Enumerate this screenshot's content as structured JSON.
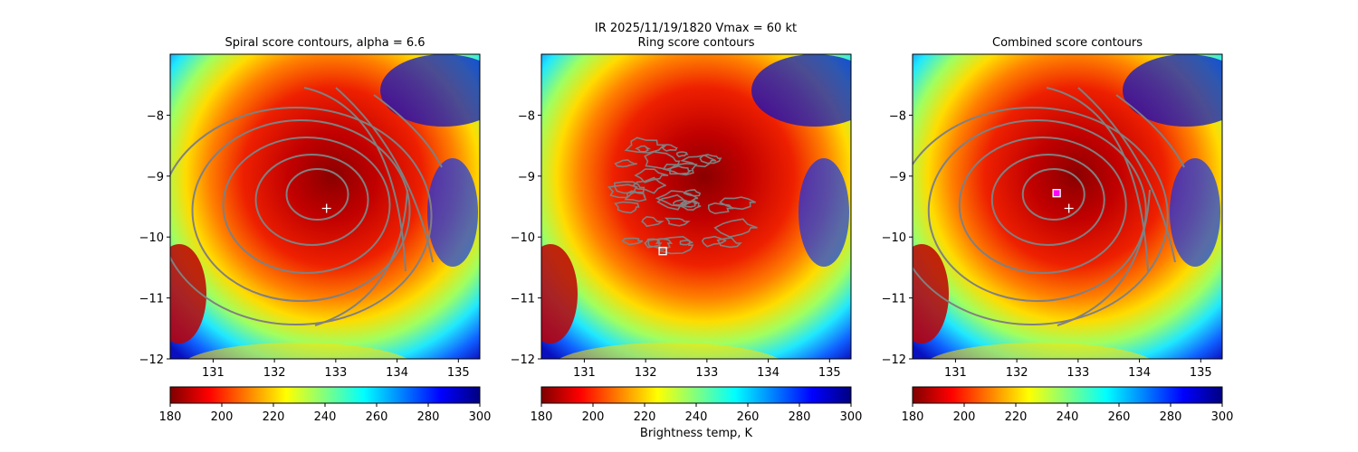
{
  "figure": {
    "suptitle_line1": "IR  2025/11/19/1820    Vmax = 60 kt",
    "colorbar_label": "Brightness temp, K",
    "colormap": "jet_r",
    "colorbar_ticks": [
      "180",
      "200",
      "220",
      "240",
      "260",
      "280",
      "300"
    ]
  },
  "chart_data": [
    {
      "type": "heatmap+contour",
      "title": "Spiral score contours, alpha =  6.6",
      "xlim": [
        130.3,
        135.35
      ],
      "ylim": [
        -12.0,
        -7.0
      ],
      "xticks": [
        "131",
        "132",
        "133",
        "134",
        "135"
      ],
      "yticks": [
        "−8",
        "−9",
        "−10",
        "−11",
        "−12"
      ],
      "colorbar": {
        "min": 180,
        "max": 300,
        "label": ""
      },
      "markers": [
        {
          "name": "center",
          "symbol": "+",
          "x": 132.85,
          "y": -9.53,
          "color": "#ffffff"
        }
      ],
      "contour_color": "#808080"
    },
    {
      "type": "heatmap+contour",
      "title": "Ring score contours",
      "xlim": [
        130.3,
        135.35
      ],
      "ylim": [
        -12.0,
        -7.0
      ],
      "xticks": [
        "131",
        "132",
        "133",
        "134",
        "135"
      ],
      "yticks": [
        "−8",
        "−9",
        "−10",
        "−11",
        "−12"
      ],
      "colorbar": {
        "min": 180,
        "max": 300,
        "label": "Brightness temp, K"
      },
      "markers": [
        {
          "name": "ring-max",
          "symbol": "square",
          "x": 132.28,
          "y": -10.23,
          "color": "#ffffff"
        }
      ],
      "contour_color": "#808080"
    },
    {
      "type": "heatmap+contour",
      "title": "Combined score contours",
      "xlim": [
        130.3,
        135.35
      ],
      "ylim": [
        -12.0,
        -7.0
      ],
      "xticks": [
        "131",
        "132",
        "133",
        "134",
        "135"
      ],
      "yticks": [
        "−8",
        "−9",
        "−10",
        "−11",
        "−12"
      ],
      "colorbar": {
        "min": 180,
        "max": 300,
        "label": ""
      },
      "markers": [
        {
          "name": "combined-max",
          "symbol": "square",
          "x": 132.65,
          "y": -9.28,
          "color": "#ff00ff"
        },
        {
          "name": "center",
          "symbol": "+",
          "x": 132.85,
          "y": -9.53,
          "color": "#ffffff"
        }
      ],
      "contour_color": "#808080"
    }
  ]
}
